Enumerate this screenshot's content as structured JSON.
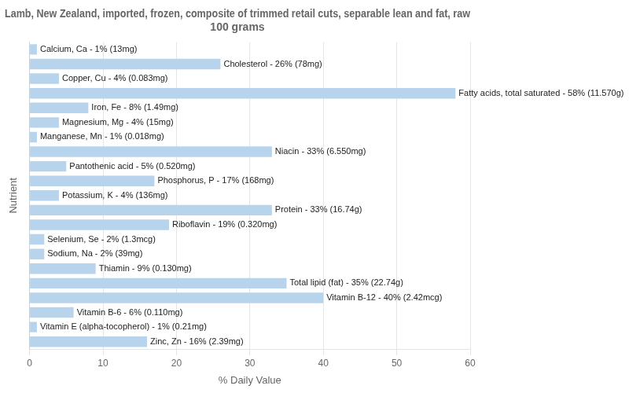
{
  "chart_data": {
    "type": "bar",
    "orientation": "horizontal",
    "title": "Lamb, New Zealand, imported, frozen, composite of trimmed retail cuts, separable lean and fat, raw\n100 grams",
    "xlabel": "% Daily Value",
    "ylabel": "Nutrient",
    "categories": [
      "Calcium, Ca - 1% (13mg)",
      "Cholesterol - 26% (78mg)",
      "Copper, Cu - 4% (0.083mg)",
      "Fatty acids, total saturated - 58% (11.570g)",
      "Iron, Fe - 8% (1.49mg)",
      "Magnesium, Mg - 4% (15mg)",
      "Manganese, Mn - 1% (0.018mg)",
      "Niacin - 33% (6.550mg)",
      "Pantothenic acid - 5% (0.520mg)",
      "Phosphorus, P - 17% (168mg)",
      "Potassium, K - 4% (136mg)",
      "Protein - 33% (16.74g)",
      "Riboflavin - 19% (0.320mg)",
      "Selenium, Se - 2% (1.3mcg)",
      "Sodium, Na - 2% (39mg)",
      "Thiamin - 9% (0.130mg)",
      "Total lipid (fat) - 35% (22.74g)",
      "Vitamin B-12 - 40% (2.42mcg)",
      "Vitamin B-6 - 6% (0.110mg)",
      "Vitamin E (alpha-tocopherol) - 1% (0.21mg)",
      "Zinc, Zn - 16% (2.39mg)"
    ],
    "values": [
      1,
      26,
      4,
      58,
      8,
      4,
      1,
      33,
      5,
      17,
      4,
      33,
      19,
      2,
      2,
      9,
      35,
      40,
      6,
      1,
      16
    ],
    "color": "#b8d4ed",
    "xlim": [
      0,
      60
    ],
    "xticks": [
      0,
      10,
      20,
      30,
      40,
      50,
      60
    ],
    "grid": true,
    "tick_labels": "x"
  }
}
